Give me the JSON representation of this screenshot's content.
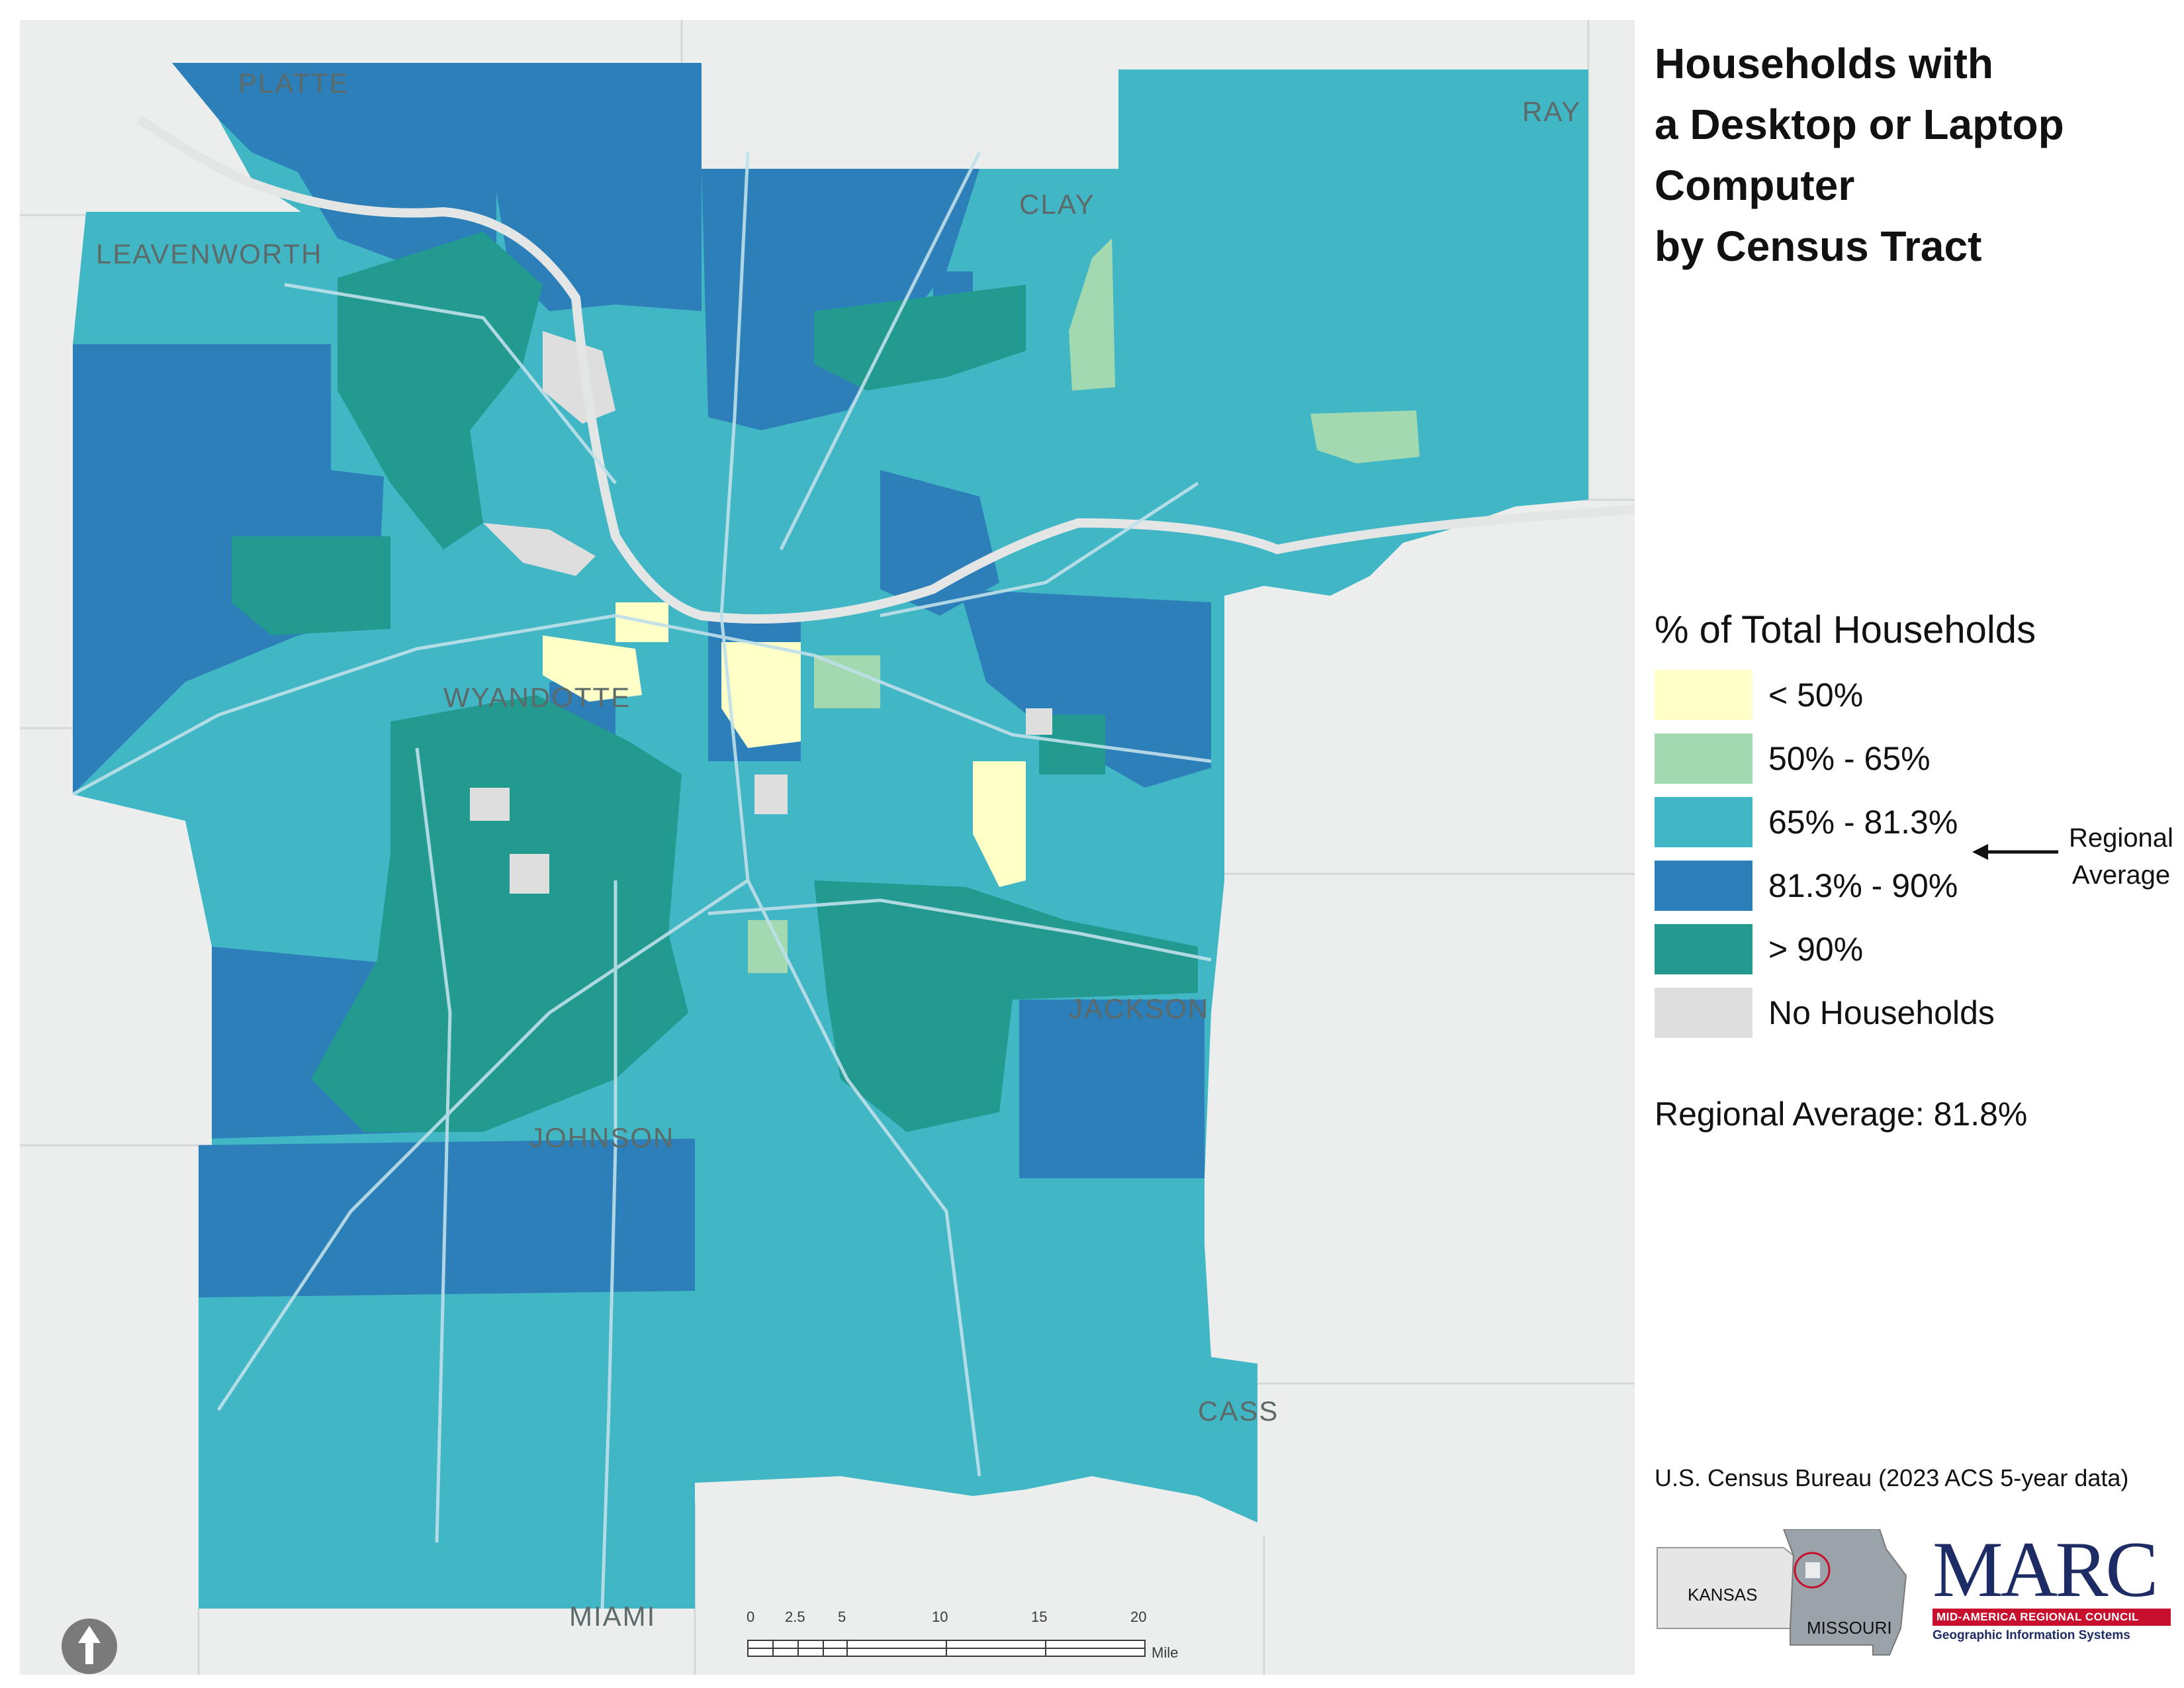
{
  "title_lines": [
    "Households with",
    "a Desktop or Laptop",
    "Computer",
    "by Census Tract"
  ],
  "legend": {
    "title": "% of Total Households",
    "items": [
      {
        "label": "< 50%",
        "color": "#ffffc8"
      },
      {
        "label": "50% - 65%",
        "color": "#a3d9b1"
      },
      {
        "label": "65% - 81.3%",
        "color": "#41b6c4"
      },
      {
        "label": "81.3% - 90%",
        "color": "#2c7fb8"
      },
      {
        "label": "> 90%",
        "color": "#229a8f"
      },
      {
        "label": "No Households",
        "color": "#dedede"
      }
    ]
  },
  "regional_average_annotation": "Regional Average",
  "regional_average_text": "Regional Average: 81.8%",
  "source": "U.S. Census Bureau (2023 ACS 5-year data)",
  "counties": [
    "PLATTE",
    "RAY",
    "CLAY",
    "LEAVENWORTH",
    "WYANDOTTE",
    "JACKSON",
    "JOHNSON",
    "CASS",
    "MIAMI"
  ],
  "scale": {
    "ticks": [
      "0",
      "2.5",
      "5",
      "10",
      "15",
      "20"
    ],
    "unit": "Miles"
  },
  "locator": {
    "kansas": "KANSAS",
    "missouri": "MISSOURI"
  },
  "logo": {
    "name": "MARC",
    "band": "MID-AMERICA REGIONAL COUNCIL",
    "subtitle": "Geographic Information Systems"
  }
}
